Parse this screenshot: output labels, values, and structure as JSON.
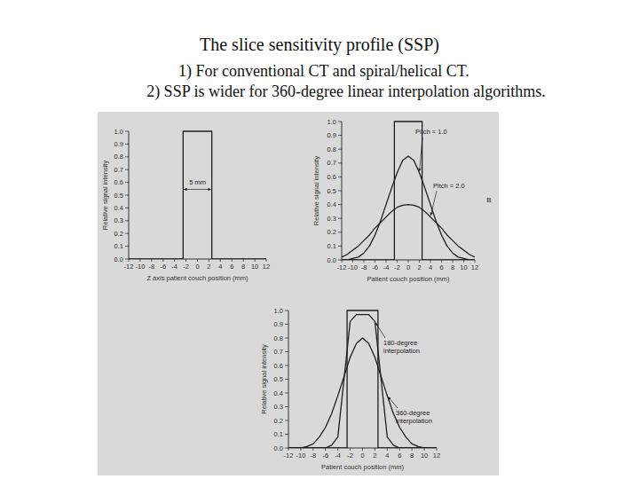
{
  "slide": {
    "title": "The slice sensitivity profile (SSP)",
    "points": [
      "1) For conventional CT and spiral/helical CT.",
      "2) SSP is wider for 360-degree linear interpolation algorithms."
    ]
  },
  "chart_data": [
    {
      "type": "line",
      "xlabel": "Z axis patient couch position (mm)",
      "ylabel": "Relative signal intensity",
      "xlim": [
        -12,
        12
      ],
      "ylim": [
        0,
        1
      ],
      "xticks": [
        -12,
        -10,
        -8,
        -6,
        -4,
        -2,
        0,
        2,
        4,
        6,
        8,
        10,
        12
      ],
      "yticks": [
        {
          "value": 0,
          "label": "0.0"
        },
        0.1,
        0.2,
        0.3,
        0.4,
        0.5,
        0.6,
        0.7,
        0.8,
        0.9,
        {
          "value": 1,
          "label": "1.0"
        }
      ],
      "grid": false,
      "annotations": [
        "5 mm"
      ],
      "series": [
        {
          "color": "#1e1e1e",
          "x": [
            -12,
            -2.5,
            -2.5,
            2.5,
            2.5,
            12
          ],
          "values": [
            0,
            0,
            1,
            1,
            0,
            0
          ]
        }
      ]
    },
    {
      "type": "line",
      "xlabel": "Patient couch position (mm)",
      "ylabel": "Relative signal intensity",
      "xlim": [
        -12,
        12
      ],
      "ylim": [
        0,
        1
      ],
      "xticks": [
        -12,
        -10,
        -8,
        -6,
        -4,
        -2,
        0,
        2,
        4,
        6,
        8,
        10,
        12
      ],
      "yticks": [
        {
          "value": 0,
          "label": "0.0"
        },
        0.1,
        0.2,
        0.3,
        0.4,
        0.5,
        0.6,
        0.7,
        0.8,
        0.9,
        {
          "value": 1,
          "label": "1.0"
        }
      ],
      "grid": false,
      "annotations": [
        "B"
      ],
      "series": [
        {
          "color": "#1e1e1e",
          "x": [
            -12,
            -2.5,
            -2.5,
            2.5,
            2.5,
            12
          ],
          "values": [
            0,
            0,
            1,
            1,
            0,
            0
          ]
        },
        {
          "name": "Pitch = 1.0",
          "color": "#1e1e1e",
          "x": [
            -12,
            -11,
            -10,
            -9,
            -8,
            -7,
            -6,
            -5,
            -4,
            -3,
            -2,
            -1,
            0,
            1,
            2,
            3,
            4,
            5,
            6,
            7,
            8,
            9,
            10,
            11,
            12
          ],
          "values": [
            0,
            0,
            0.01,
            0.02,
            0.05,
            0.1,
            0.18,
            0.28,
            0.4,
            0.52,
            0.63,
            0.72,
            0.75,
            0.72,
            0.63,
            0.52,
            0.4,
            0.28,
            0.18,
            0.1,
            0.05,
            0.02,
            0.01,
            0,
            0
          ]
        },
        {
          "name": "Pitch = 2.0",
          "color": "#1e1e1e",
          "x": [
            -12,
            -11,
            -10,
            -9,
            -8,
            -7,
            -6,
            -5,
            -4,
            -3,
            -2,
            -1,
            0,
            1,
            2,
            3,
            4,
            5,
            6,
            7,
            8,
            9,
            10,
            11,
            12
          ],
          "values": [
            0.02,
            0.04,
            0.07,
            0.1,
            0.14,
            0.18,
            0.23,
            0.27,
            0.31,
            0.35,
            0.38,
            0.395,
            0.4,
            0.395,
            0.38,
            0.35,
            0.31,
            0.27,
            0.23,
            0.18,
            0.14,
            0.1,
            0.07,
            0.04,
            0.02
          ]
        }
      ]
    },
    {
      "type": "line",
      "xlabel": "Patient couch position (mm)",
      "ylabel": "Relative signal intensity",
      "xlim": [
        -12,
        12
      ],
      "ylim": [
        0,
        1
      ],
      "xticks": [
        -12,
        -10,
        -8,
        -6,
        -4,
        -2,
        0,
        2,
        4,
        6,
        8,
        10,
        12
      ],
      "yticks": [
        {
          "value": 0,
          "label": "0.0"
        },
        0.1,
        0.2,
        0.3,
        0.4,
        0.5,
        0.6,
        0.7,
        0.8,
        0.9,
        {
          "value": 1,
          "label": "1.0"
        }
      ],
      "grid": false,
      "series": [
        {
          "color": "#1e1e1e",
          "x": [
            -12,
            -2.5,
            -2.5,
            2.5,
            2.5,
            12
          ],
          "values": [
            0,
            0,
            1,
            1,
            0,
            0
          ]
        },
        {
          "name": "180-degree interpolation",
          "color": "#1e1e1e",
          "x": [
            -12,
            -11,
            -10,
            -9,
            -8,
            -7,
            -6,
            -5,
            -4,
            -3,
            -2,
            -1,
            0,
            1,
            2,
            3,
            4,
            5,
            6,
            7,
            8,
            9,
            10,
            11,
            12
          ],
          "values": [
            0,
            0,
            0,
            0,
            0,
            0,
            0,
            0.02,
            0.08,
            0.5,
            0.92,
            0.97,
            0.97,
            0.97,
            0.92,
            0.5,
            0.08,
            0.02,
            0,
            0,
            0,
            0,
            0,
            0,
            0
          ]
        },
        {
          "name": "360-degree interpolation",
          "color": "#1e1e1e",
          "x": [
            -12,
            -11,
            -10,
            -9,
            -8,
            -7,
            -6,
            -5,
            -4,
            -3,
            -2,
            -1,
            0,
            1,
            2,
            3,
            4,
            5,
            6,
            7,
            8,
            9,
            10,
            11,
            12
          ],
          "values": [
            0,
            0,
            0,
            0.01,
            0.03,
            0.08,
            0.15,
            0.25,
            0.38,
            0.52,
            0.66,
            0.76,
            0.8,
            0.76,
            0.66,
            0.52,
            0.38,
            0.25,
            0.15,
            0.08,
            0.03,
            0.01,
            0,
            0,
            0
          ]
        }
      ]
    }
  ]
}
